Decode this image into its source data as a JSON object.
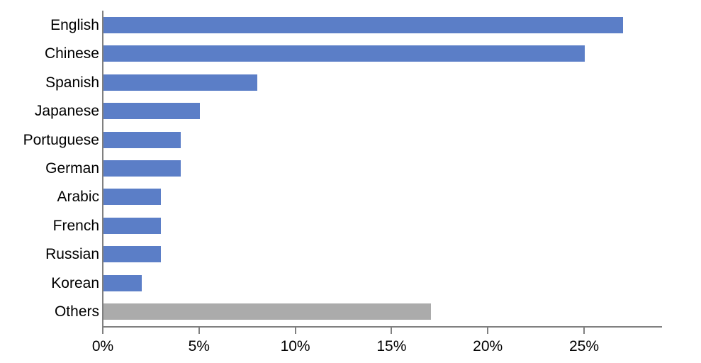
{
  "chart_data": {
    "type": "bar",
    "orientation": "horizontal",
    "title": "",
    "xlabel": "",
    "ylabel": "",
    "categories": [
      "English",
      "Chinese",
      "Spanish",
      "Japanese",
      "Portuguese",
      "German",
      "Arabic",
      "French",
      "Russian",
      "Korean",
      "Others"
    ],
    "values": [
      27,
      25,
      8,
      5,
      4,
      4,
      3,
      3,
      3,
      2,
      17
    ],
    "value_unit": "%",
    "bar_colors": [
      "#5B7EC7",
      "#5B7EC7",
      "#5B7EC7",
      "#5B7EC7",
      "#5B7EC7",
      "#5B7EC7",
      "#5B7EC7",
      "#5B7EC7",
      "#5B7EC7",
      "#5B7EC7",
      "#ABABAB"
    ],
    "xlim": [
      0,
      29
    ],
    "x_ticks": [
      0,
      5,
      10,
      15,
      20,
      25
    ],
    "x_tick_labels": [
      "0%",
      "5%",
      "10%",
      "15%",
      "20%",
      "25%"
    ],
    "grid": false,
    "legend": false,
    "axis_color": "#808080",
    "text_color": "#000000",
    "background_color": "#FFFFFF"
  }
}
